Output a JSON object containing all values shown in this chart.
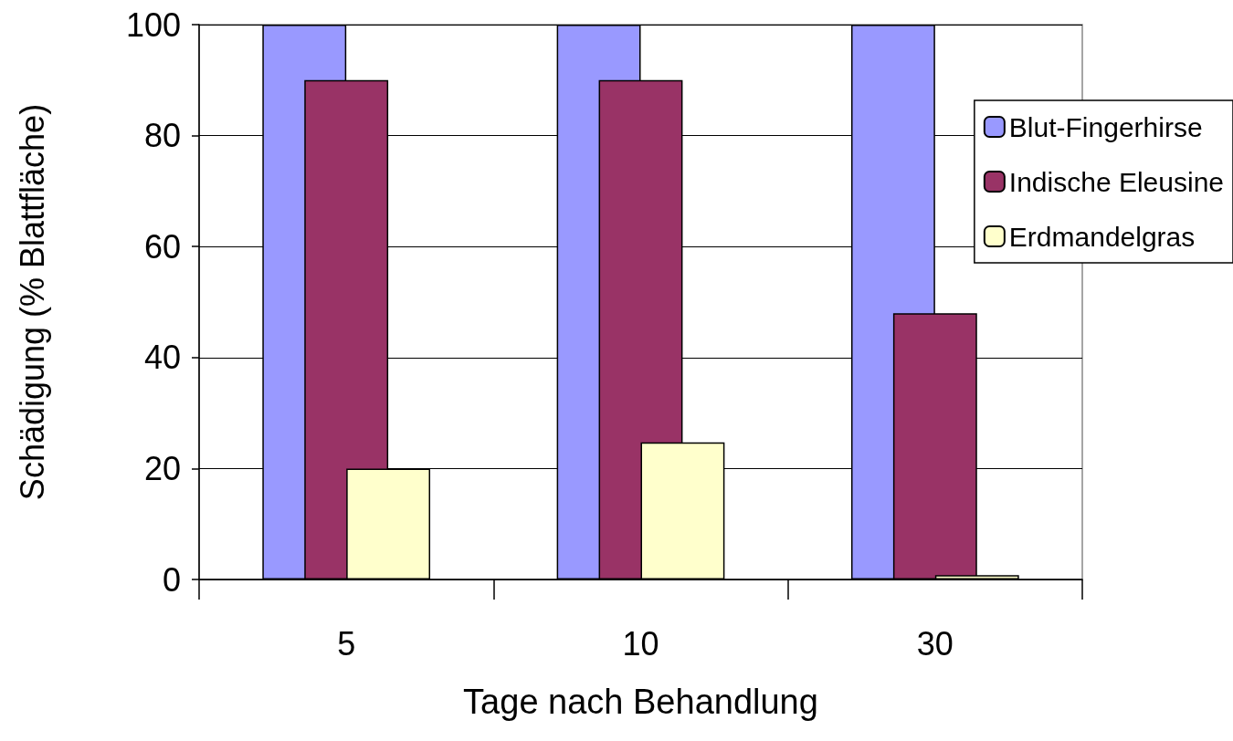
{
  "chart_data": {
    "type": "bar",
    "xlabel": "Tage nach Behandlung",
    "ylabel": "Schädigung (% Blattfläche)",
    "categories": [
      "5",
      "10",
      "30"
    ],
    "series": [
      {
        "name": "Blut-Fingerhirse",
        "color": "#9999ff",
        "values": [
          100,
          100,
          100
        ]
      },
      {
        "name": "Indische Eleusine",
        "color": "#993366",
        "values": [
          90,
          90,
          48
        ]
      },
      {
        "name": "Erdmandelgras",
        "color": "#ffffcc",
        "values": [
          20,
          24.7,
          0.8
        ]
      }
    ],
    "ylim": [
      0,
      100
    ],
    "yticks": [
      0,
      20,
      40,
      60,
      80,
      100
    ],
    "grid": "y",
    "legend": "right"
  }
}
